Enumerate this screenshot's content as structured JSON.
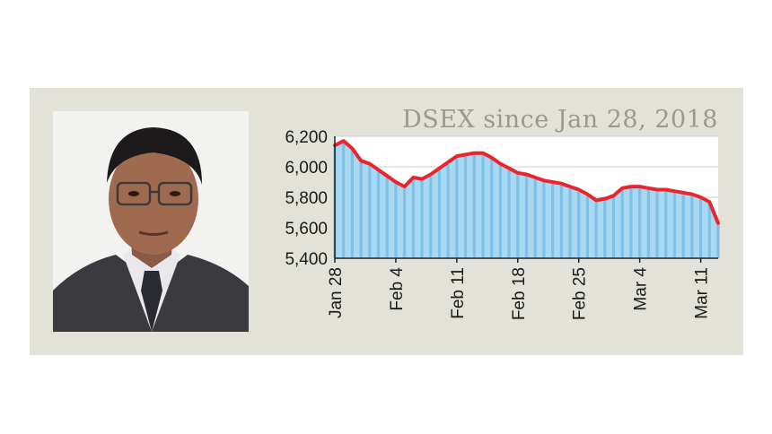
{
  "chart_data": {
    "type": "area",
    "title": "DSEX since Jan 28, 2018",
    "xlabel": "",
    "ylabel": "",
    "ylim": [
      5400,
      6200
    ],
    "yticks": [
      6200,
      6000,
      5800,
      5600,
      5400
    ],
    "ytick_labels": [
      "6,200",
      "6,000",
      "5,800",
      "5,600",
      "5,400"
    ],
    "xtick_labels": [
      "Jan 28",
      "Feb 4",
      "Feb 11",
      "Feb 18",
      "Feb 25",
      "Mar 4",
      "Mar 11"
    ],
    "xtick_days": [
      0,
      7,
      14,
      21,
      28,
      35,
      42
    ],
    "x_days": [
      0,
      1,
      2,
      3,
      4,
      5,
      6,
      7,
      8,
      9,
      10,
      11,
      12,
      13,
      14,
      15,
      16,
      17,
      18,
      19,
      20,
      21,
      22,
      23,
      24,
      25,
      26,
      27,
      28,
      29,
      30,
      31,
      32,
      33,
      34,
      35,
      36,
      37,
      38,
      39,
      40,
      41,
      42,
      43,
      44
    ],
    "values": [
      6140,
      6170,
      6120,
      6040,
      6020,
      5980,
      5940,
      5900,
      5870,
      5930,
      5920,
      5950,
      5990,
      6030,
      6070,
      6080,
      6090,
      6090,
      6060,
      6020,
      5990,
      5960,
      5950,
      5930,
      5910,
      5900,
      5890,
      5870,
      5850,
      5820,
      5780,
      5790,
      5810,
      5860,
      5870,
      5870,
      5860,
      5850,
      5850,
      5840,
      5830,
      5820,
      5800,
      5770,
      5630
    ],
    "grid": true,
    "line_color": "#e8262c",
    "fill_color": "#a9d9f2",
    "stripe_color": "#7fc0e6",
    "grid_color": "#cfcfcf"
  }
}
